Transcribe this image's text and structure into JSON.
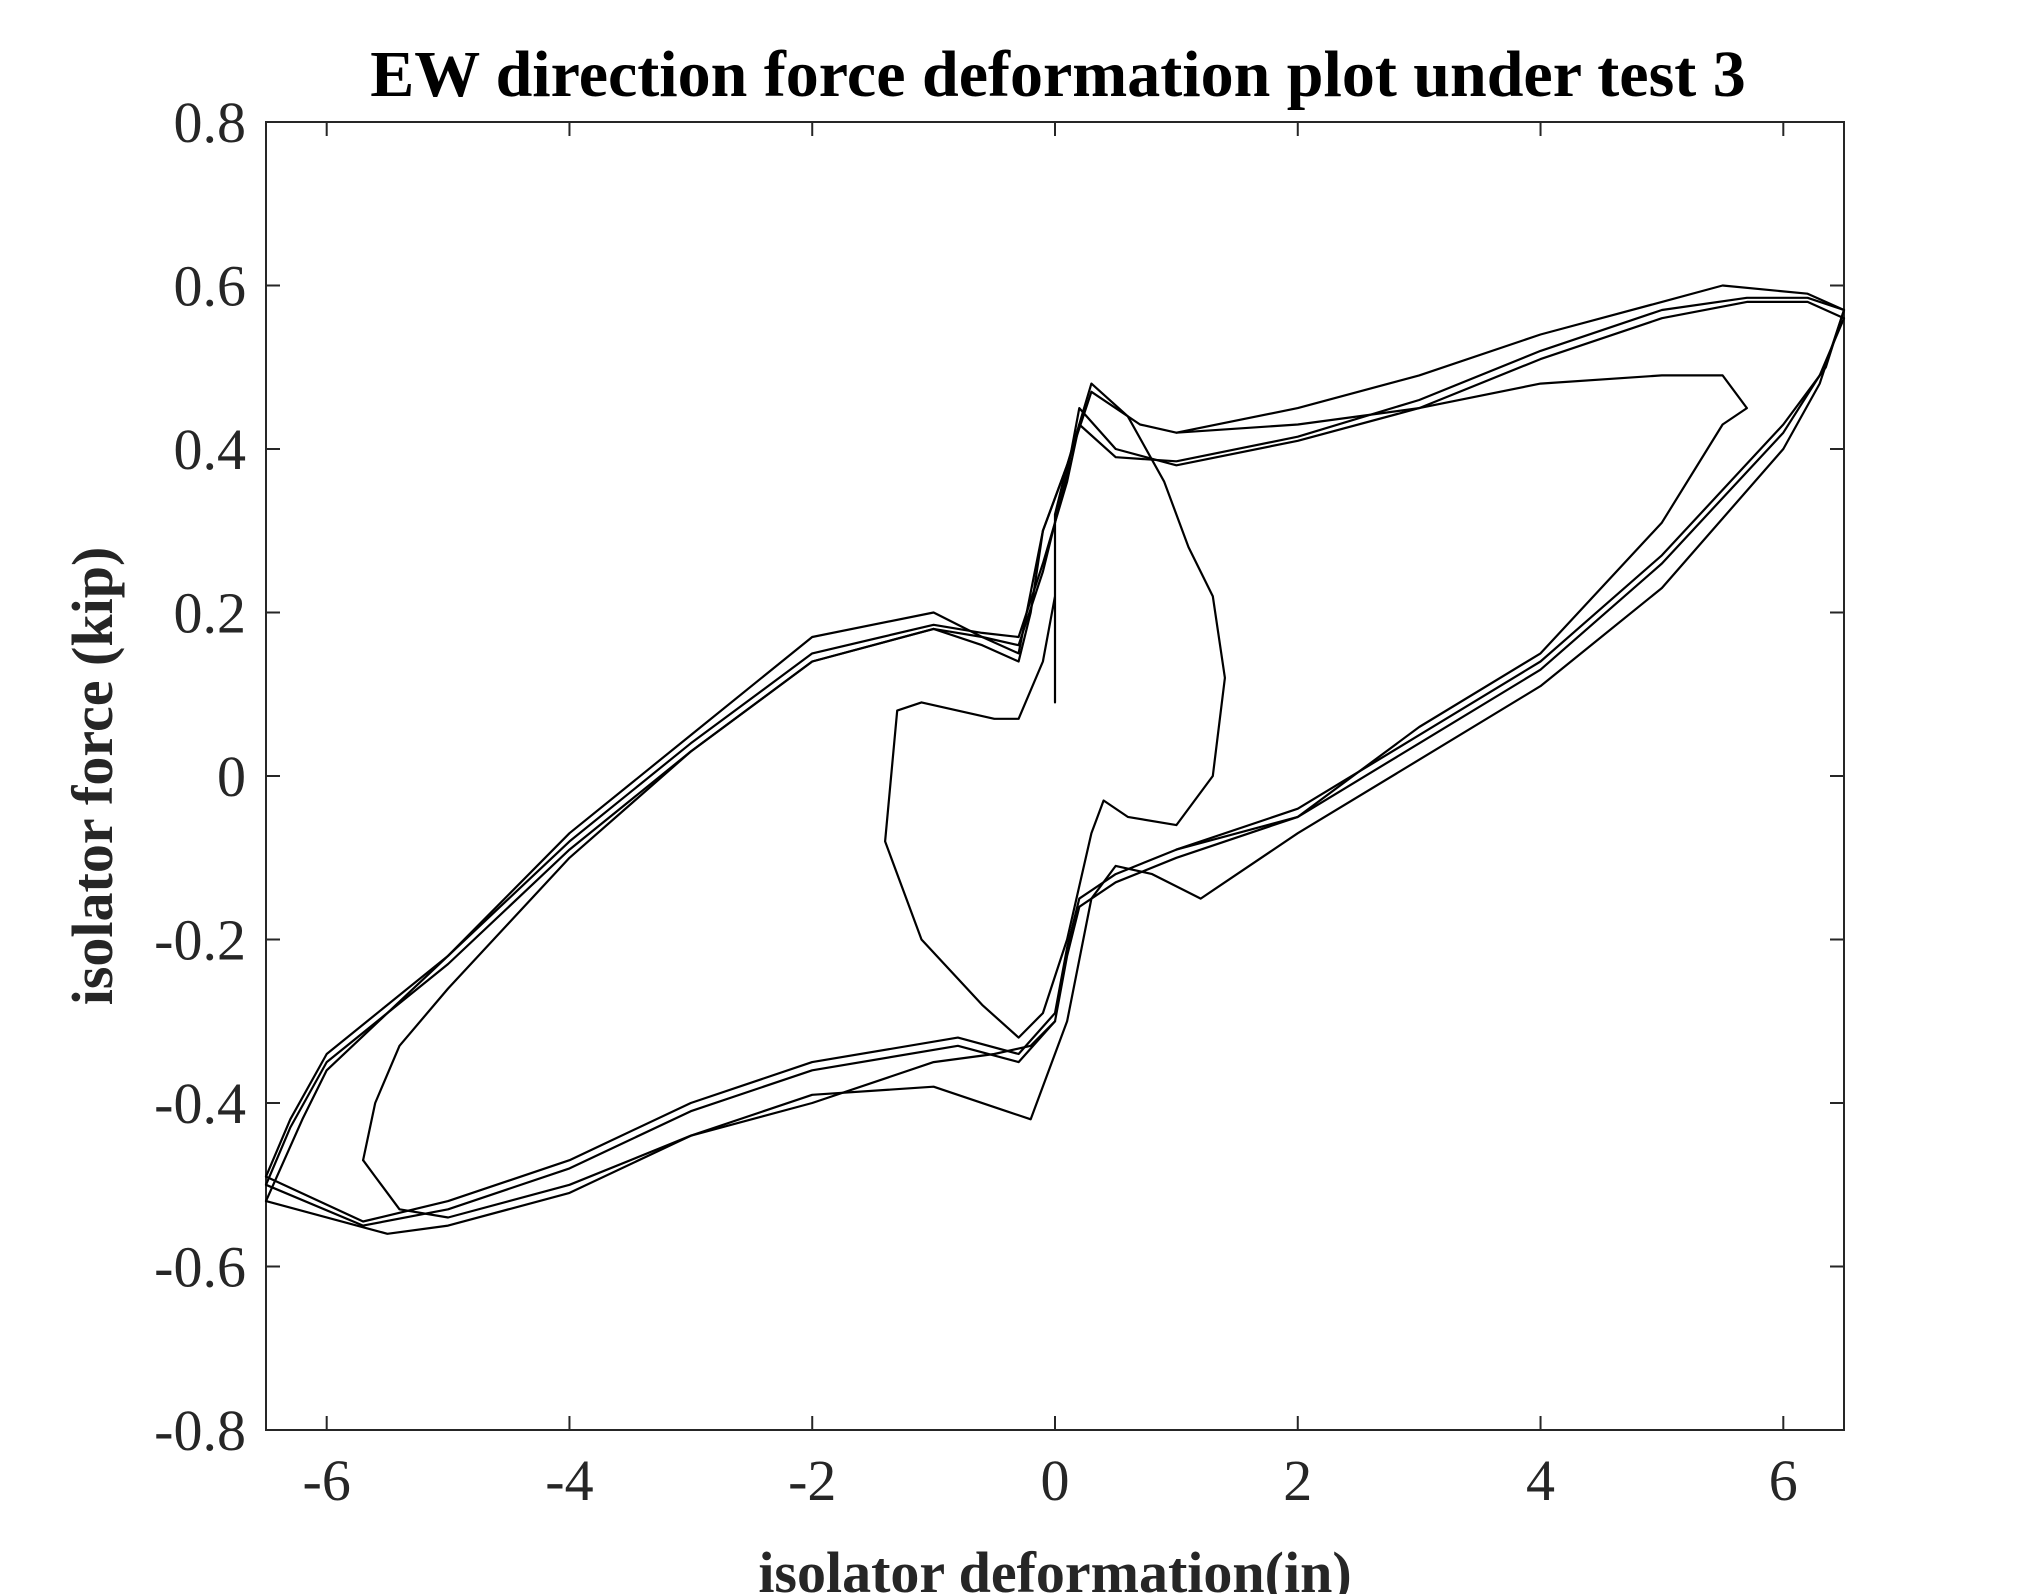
{
  "chart_data": {
    "type": "line",
    "title": "EW direction force deformation plot under test 3",
    "xlabel": "isolator deformation(in)",
    "ylabel": "isolator force (kip)",
    "xlim": [
      -6.5,
      6.5
    ],
    "ylim": [
      -0.8,
      0.8
    ],
    "xticks": [
      -6,
      -4,
      -2,
      0,
      2,
      4,
      6
    ],
    "yticks": [
      -0.8,
      -0.6,
      -0.4,
      -0.2,
      0,
      0.2,
      0.4,
      0.6,
      0.8
    ],
    "xtick_labels": [
      "-6",
      "-4",
      "-2",
      "0",
      "2",
      "4",
      "6"
    ],
    "ytick_labels": [
      "-0.8",
      "-0.6",
      "-0.4",
      "-0.2",
      "0",
      "0.2",
      "0.4",
      "0.6",
      "0.8"
    ],
    "grid": false,
    "legend": "none",
    "series": [
      {
        "values": [
          [
            0.0,
            0.09
          ],
          [
            0.0,
            0.32
          ],
          [
            0.1,
            0.38
          ],
          [
            0.3,
            0.48
          ],
          [
            0.6,
            0.44
          ],
          [
            0.9,
            0.36
          ],
          [
            1.1,
            0.28
          ],
          [
            1.3,
            0.22
          ],
          [
            1.4,
            0.12
          ],
          [
            1.3,
            0.0
          ],
          [
            1.0,
            -0.06
          ],
          [
            0.6,
            -0.05
          ],
          [
            0.4,
            -0.03
          ],
          [
            0.3,
            -0.07
          ],
          [
            0.1,
            -0.2
          ],
          [
            -0.1,
            -0.29
          ],
          [
            -0.3,
            -0.32
          ],
          [
            -0.6,
            -0.28
          ],
          [
            -1.1,
            -0.2
          ],
          [
            -1.4,
            -0.08
          ],
          [
            -1.3,
            0.08
          ],
          [
            -1.1,
            0.09
          ],
          [
            -0.5,
            0.07
          ],
          [
            -0.3,
            0.07
          ],
          [
            -0.1,
            0.14
          ],
          [
            0.0,
            0.22
          ]
        ]
      },
      {
        "values": [
          [
            0.1,
            0.37
          ],
          [
            0.2,
            0.45
          ],
          [
            0.5,
            0.4
          ],
          [
            1.0,
            0.38
          ],
          [
            2.0,
            0.41
          ],
          [
            3.0,
            0.45
          ],
          [
            4.0,
            0.51
          ],
          [
            5.0,
            0.56
          ],
          [
            5.7,
            0.58
          ],
          [
            6.2,
            0.58
          ],
          [
            6.5,
            0.56
          ],
          [
            6.3,
            0.49
          ],
          [
            6.0,
            0.42
          ],
          [
            5.0,
            0.26
          ],
          [
            4.0,
            0.13
          ],
          [
            3.0,
            0.04
          ],
          [
            2.0,
            -0.05
          ],
          [
            1.0,
            -0.1
          ],
          [
            0.5,
            -0.13
          ],
          [
            0.2,
            -0.16
          ],
          [
            0.1,
            -0.22
          ],
          [
            0.0,
            -0.3
          ],
          [
            -0.3,
            -0.35
          ],
          [
            -0.8,
            -0.33
          ],
          [
            -2.0,
            -0.36
          ],
          [
            -3.0,
            -0.41
          ],
          [
            -4.0,
            -0.48
          ],
          [
            -5.0,
            -0.53
          ],
          [
            -5.7,
            -0.55
          ],
          [
            -6.5,
            -0.5
          ],
          [
            -6.3,
            -0.43
          ],
          [
            -6.0,
            -0.35
          ],
          [
            -5.0,
            -0.23
          ],
          [
            -4.0,
            -0.09
          ],
          [
            -3.0,
            0.03
          ],
          [
            -2.0,
            0.14
          ],
          [
            -1.0,
            0.18
          ],
          [
            -0.6,
            0.17
          ],
          [
            -0.3,
            0.16
          ],
          [
            -0.1,
            0.25
          ],
          [
            0.1,
            0.37
          ]
        ]
      },
      {
        "values": [
          [
            0.1,
            0.36
          ],
          [
            0.2,
            0.43
          ],
          [
            0.5,
            0.39
          ],
          [
            1.0,
            0.385
          ],
          [
            2.0,
            0.415
          ],
          [
            3.0,
            0.46
          ],
          [
            4.0,
            0.52
          ],
          [
            5.0,
            0.57
          ],
          [
            5.7,
            0.585
          ],
          [
            6.2,
            0.585
          ],
          [
            6.5,
            0.57
          ],
          [
            6.35,
            0.5
          ],
          [
            6.0,
            0.43
          ],
          [
            5.0,
            0.27
          ],
          [
            4.0,
            0.14
          ],
          [
            3.0,
            0.05
          ],
          [
            2.0,
            -0.04
          ],
          [
            1.0,
            -0.09
          ],
          [
            0.5,
            -0.12
          ],
          [
            0.2,
            -0.15
          ],
          [
            0.1,
            -0.21
          ],
          [
            0.0,
            -0.29
          ],
          [
            -0.3,
            -0.34
          ],
          [
            -0.8,
            -0.32
          ],
          [
            -2.0,
            -0.35
          ],
          [
            -3.0,
            -0.4
          ],
          [
            -4.0,
            -0.47
          ],
          [
            -5.0,
            -0.52
          ],
          [
            -5.7,
            -0.545
          ],
          [
            -6.5,
            -0.49
          ],
          [
            -6.3,
            -0.42
          ],
          [
            -6.0,
            -0.34
          ],
          [
            -5.0,
            -0.22
          ],
          [
            -4.0,
            -0.08
          ],
          [
            -3.0,
            0.04
          ],
          [
            -2.0,
            0.15
          ],
          [
            -1.0,
            0.185
          ],
          [
            -0.6,
            0.175
          ],
          [
            -0.3,
            0.17
          ],
          [
            -0.1,
            0.26
          ],
          [
            0.1,
            0.36
          ]
        ]
      },
      {
        "values": [
          [
            0.1,
            0.38
          ],
          [
            0.3,
            0.47
          ],
          [
            0.7,
            0.43
          ],
          [
            1.0,
            0.42
          ],
          [
            2.0,
            0.45
          ],
          [
            3.0,
            0.49
          ],
          [
            4.0,
            0.54
          ],
          [
            5.0,
            0.58
          ],
          [
            5.5,
            0.6
          ],
          [
            6.2,
            0.59
          ],
          [
            6.5,
            0.57
          ],
          [
            6.3,
            0.48
          ],
          [
            6.0,
            0.4
          ],
          [
            5.0,
            0.23
          ],
          [
            4.0,
            0.11
          ],
          [
            3.0,
            0.02
          ],
          [
            2.0,
            -0.07
          ],
          [
            1.2,
            -0.15
          ],
          [
            0.8,
            -0.12
          ],
          [
            0.5,
            -0.11
          ],
          [
            0.3,
            -0.15
          ],
          [
            0.1,
            -0.3
          ],
          [
            -0.2,
            -0.42
          ],
          [
            -0.4,
            -0.41
          ],
          [
            -1.0,
            -0.38
          ],
          [
            -2.0,
            -0.39
          ],
          [
            -3.0,
            -0.44
          ],
          [
            -4.0,
            -0.51
          ],
          [
            -5.0,
            -0.55
          ],
          [
            -5.5,
            -0.56
          ],
          [
            -6.5,
            -0.52
          ],
          [
            -6.2,
            -0.42
          ],
          [
            -6.0,
            -0.36
          ],
          [
            -5.0,
            -0.22
          ],
          [
            -4.0,
            -0.07
          ],
          [
            -3.0,
            0.05
          ],
          [
            -2.0,
            0.17
          ],
          [
            -1.0,
            0.2
          ],
          [
            -0.6,
            0.17
          ],
          [
            -0.3,
            0.15
          ],
          [
            -0.1,
            0.3
          ],
          [
            0.1,
            0.38
          ]
        ]
      },
      {
        "values": [
          [
            1.0,
            0.42
          ],
          [
            2.0,
            0.43
          ],
          [
            3.0,
            0.45
          ],
          [
            4.0,
            0.48
          ],
          [
            5.0,
            0.49
          ],
          [
            5.5,
            0.49
          ],
          [
            5.7,
            0.45
          ],
          [
            5.5,
            0.43
          ],
          [
            5.0,
            0.31
          ],
          [
            4.0,
            0.15
          ],
          [
            3.0,
            0.06
          ],
          [
            2.0,
            -0.05
          ],
          [
            1.0,
            -0.09
          ]
        ]
      },
      {
        "values": [
          [
            -5.7,
            -0.47
          ],
          [
            -5.6,
            -0.4
          ],
          [
            -5.4,
            -0.33
          ],
          [
            -5.0,
            -0.26
          ],
          [
            -4.5,
            -0.18
          ],
          [
            -4.0,
            -0.1
          ],
          [
            -3.0,
            0.03
          ],
          [
            -2.0,
            0.14
          ],
          [
            -1.0,
            0.18
          ],
          [
            -0.6,
            0.16
          ],
          [
            -0.3,
            0.14
          ],
          [
            -0.2,
            0.2
          ],
          [
            -0.1,
            0.3
          ],
          [
            0.1,
            0.38
          ]
        ]
      },
      {
        "values": [
          [
            -5.7,
            -0.47
          ],
          [
            -5.6,
            -0.49
          ],
          [
            -5.4,
            -0.53
          ],
          [
            -5.0,
            -0.54
          ],
          [
            -4.0,
            -0.5
          ],
          [
            -3.0,
            -0.44
          ],
          [
            -2.0,
            -0.4
          ],
          [
            -1.0,
            -0.35
          ],
          [
            -0.5,
            -0.34
          ],
          [
            -0.2,
            -0.33
          ],
          [
            0.0,
            -0.3
          ]
        ]
      }
    ]
  }
}
